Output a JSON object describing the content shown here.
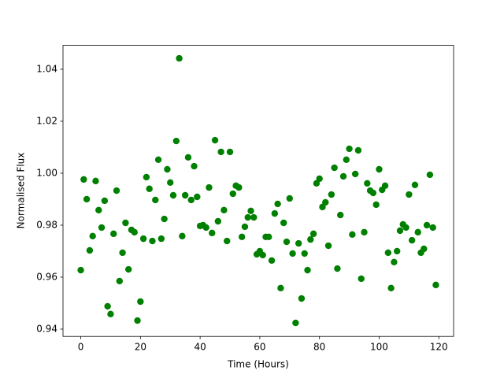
{
  "chart_data": {
    "type": "scatter",
    "x_label": "Time (Hours)",
    "y_label": "Normalised Flux",
    "color": "#008000",
    "xlim": [
      -5.95,
      124.95
    ],
    "ylim": [
      0.9372,
      1.0492
    ],
    "xticks": [
      0,
      20,
      40,
      60,
      80,
      100,
      120
    ],
    "yticks": [
      0.94,
      0.96,
      0.98,
      {
        "value": 1,
        "label": "1.00"
      },
      1.02,
      1.04
    ],
    "grid": false,
    "x": [
      0,
      1,
      2,
      3,
      4,
      5,
      6,
      7,
      8,
      9,
      10,
      11,
      12,
      13,
      14,
      15,
      16,
      17,
      18,
      19,
      20,
      21,
      22,
      23,
      24,
      25,
      26,
      27,
      28,
      29,
      30,
      31,
      32,
      33,
      34,
      35,
      36,
      37,
      38,
      39,
      40,
      41,
      42,
      43,
      44,
      45,
      46,
      47,
      48,
      49,
      50,
      51,
      52,
      53,
      54,
      55,
      56,
      57,
      58,
      59,
      60,
      61,
      62,
      63,
      64,
      65,
      66,
      67,
      68,
      69,
      70,
      71,
      72,
      73,
      74,
      75,
      76,
      77,
      78,
      79,
      80,
      81,
      82,
      83,
      84,
      85,
      86,
      87,
      88,
      89,
      90,
      91,
      92,
      93,
      94,
      95,
      96,
      97,
      98,
      99,
      100,
      101,
      102,
      103,
      104,
      105,
      106,
      107,
      108,
      109,
      110,
      111,
      112,
      113,
      114,
      115,
      116,
      117,
      118,
      119
    ],
    "values": [
      0.9627,
      0.9976,
      0.99,
      0.9703,
      0.9758,
      0.997,
      0.9858,
      0.9791,
      0.9894,
      0.9488,
      0.9458,
      0.9767,
      0.9933,
      0.9585,
      0.9694,
      0.9809,
      0.963,
      0.9782,
      0.9773,
      0.9433,
      0.9506,
      0.9748,
      0.9985,
      0.994,
      0.9739,
      0.9897,
      1.0052,
      0.9748,
      0.9824,
      1.0015,
      0.9964,
      0.9915,
      1.0124,
      1.0442,
      0.9758,
      0.9915,
      1.0061,
      0.9897,
      1.0027,
      0.9909,
      0.9797,
      0.98,
      0.9791,
      0.9945,
      0.977,
      1.0127,
      0.9815,
      1.0082,
      0.9858,
      0.9739,
      1.0082,
      0.9921,
      0.9952,
      0.9945,
      0.9755,
      0.9794,
      0.983,
      0.9855,
      0.983,
      0.9688,
      0.97,
      0.9685,
      0.9755,
      0.9755,
      0.9664,
      0.9845,
      0.9882,
      0.9558,
      0.9809,
      0.9736,
      0.9903,
      0.9691,
      0.9424,
      0.973,
      0.9518,
      0.9691,
      0.9627,
      0.9745,
      0.9767,
      0.9961,
      0.9979,
      0.987,
      0.9888,
      0.9721,
      0.9918,
      1.0021,
      0.9633,
      0.9839,
      0.9988,
      1.0052,
      1.0094,
      0.9764,
      0.9997,
      1.0088,
      0.9594,
      0.9773,
      0.9961,
      0.9933,
      0.9924,
      0.9879,
      1.0015,
      0.9936,
      0.9952,
      0.9694,
      0.9558,
      0.9658,
      0.97,
      0.9779,
      0.9803,
      0.9791,
      0.9918,
      0.9742,
      0.9955,
      0.9773,
      0.9694,
      0.9709,
      0.98,
      0.9994,
      0.9791,
      0.957
    ]
  }
}
